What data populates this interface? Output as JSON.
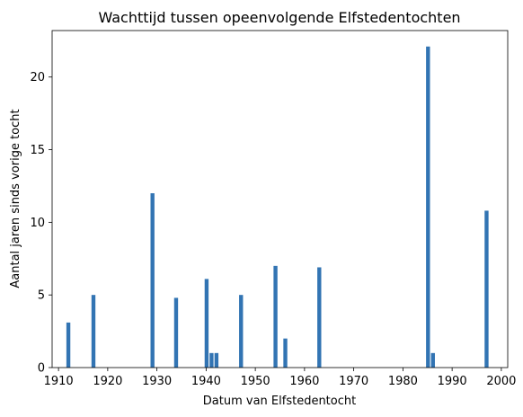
{
  "chart_data": {
    "type": "bar",
    "title": "Wachttijd tussen opeenvolgende Elfstedentochten",
    "xlabel": "Datum van Elfstedentocht",
    "ylabel": "Aantal jaren sinds vorige tocht",
    "xlim": [
      1908.7,
      2001.3
    ],
    "ylim": [
      0,
      23.2
    ],
    "xticks": [
      1910,
      1920,
      1930,
      1940,
      1950,
      1960,
      1970,
      1980,
      1990,
      2000
    ],
    "yticks": [
      0,
      5,
      10,
      15,
      20
    ],
    "color": "#3274b3",
    "grid": false,
    "data": [
      {
        "x": 1912.0,
        "y": 3.1
      },
      {
        "x": 1917.1,
        "y": 5.0
      },
      {
        "x": 1929.1,
        "y": 12.0
      },
      {
        "x": 1933.9,
        "y": 4.8
      },
      {
        "x": 1940.1,
        "y": 6.1
      },
      {
        "x": 1941.1,
        "y": 1.0
      },
      {
        "x": 1942.1,
        "y": 1.0
      },
      {
        "x": 1947.1,
        "y": 5.0
      },
      {
        "x": 1954.1,
        "y": 7.0
      },
      {
        "x": 1956.1,
        "y": 2.0
      },
      {
        "x": 1963.0,
        "y": 6.9
      },
      {
        "x": 1985.1,
        "y": 22.1
      },
      {
        "x": 1986.1,
        "y": 1.0
      },
      {
        "x": 1997.0,
        "y": 10.8
      }
    ]
  }
}
